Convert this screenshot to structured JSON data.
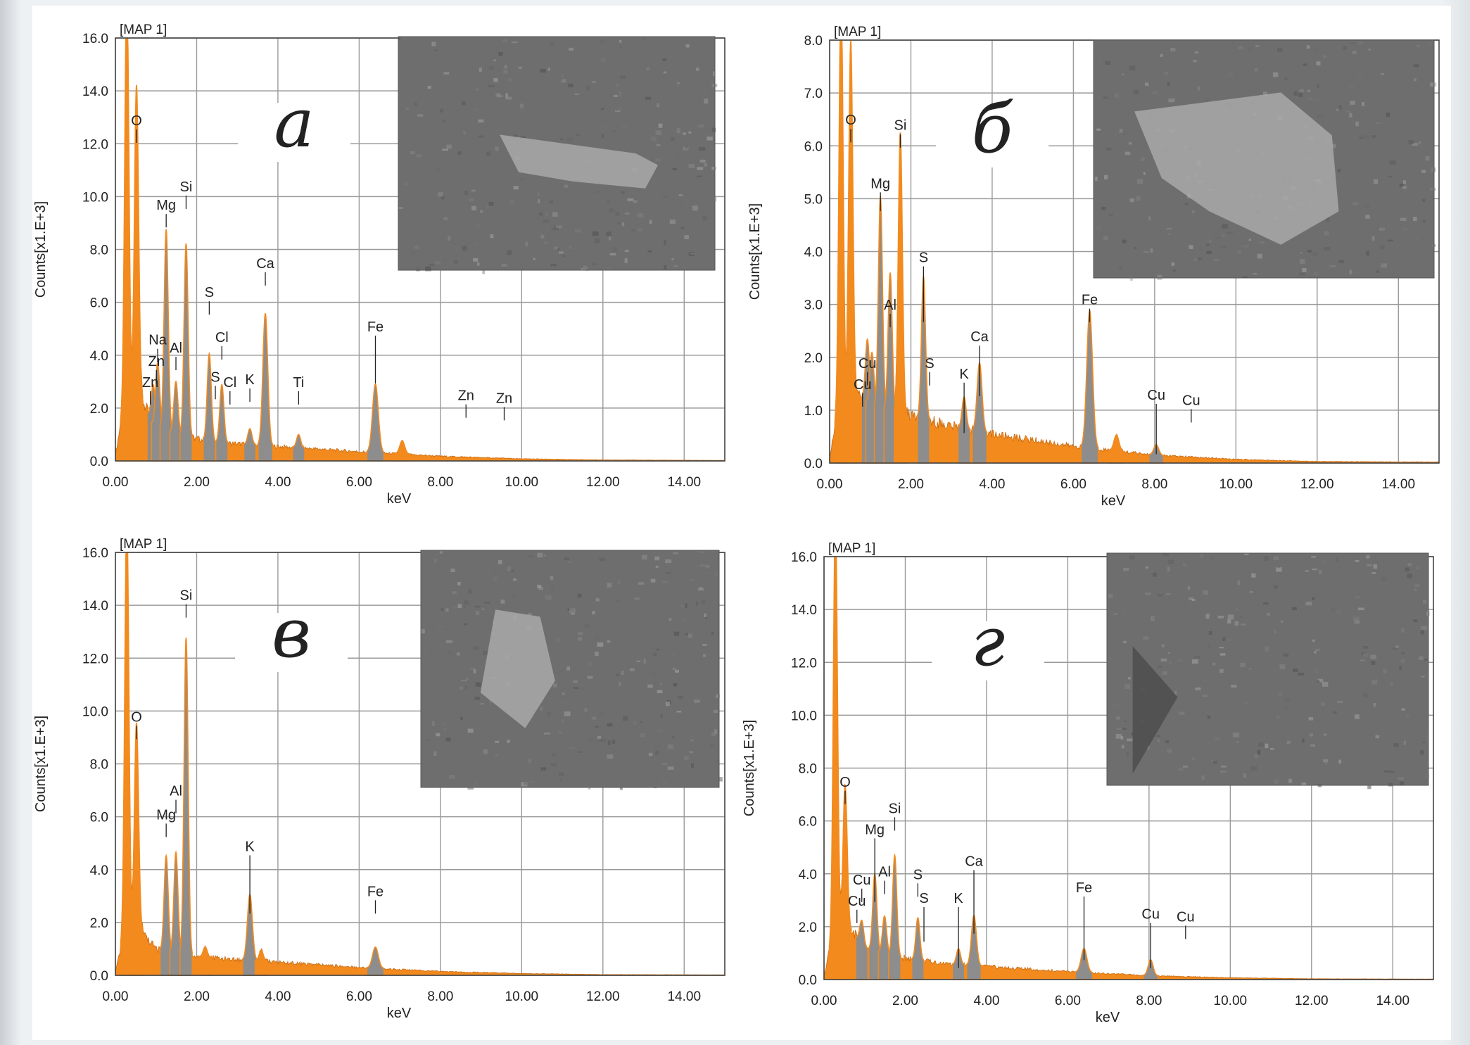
{
  "colors": {
    "spectrum": "#f28a1e",
    "spectrum_dark": "#c96a10",
    "element_peak": "#8d8d8d",
    "grid": "#9a9a9a",
    "micrograph_bg": "#6e6e6e"
  },
  "chart_data": [
    {
      "type": "area",
      "panel_label": "а",
      "map_label": "[MAP 1]",
      "xlabel": "keV",
      "ylabel": "Counts[x1.E+3]",
      "xlim": [
        0,
        15
      ],
      "ylim": [
        0,
        16
      ],
      "xticks": [
        "0.00",
        "2.00",
        "4.00",
        "6.00",
        "8.00",
        "10.00",
        "12.00",
        "14.00"
      ],
      "yticks": [
        "0.0",
        "2.0",
        "4.0",
        "6.0",
        "8.0",
        "10.0",
        "12.0",
        "14.0",
        "16.0"
      ],
      "grid": true,
      "inset": "micrograph-top-right",
      "peaks": [
        {
          "x": 0.28,
          "y": 16.0,
          "w": 0.05,
          "tone": "orange"
        },
        {
          "x": 0.52,
          "y": 11.3,
          "w": 0.05,
          "tone": "orange"
        },
        {
          "x": 0.93,
          "y": 1.5,
          "w": 0.05,
          "tone": "gray"
        },
        {
          "x": 1.04,
          "y": 2.4,
          "w": 0.05,
          "tone": "gray"
        },
        {
          "x": 1.25,
          "y": 7.6,
          "w": 0.05,
          "tone": "gray"
        },
        {
          "x": 1.49,
          "y": 2.0,
          "w": 0.05,
          "tone": "gray"
        },
        {
          "x": 1.74,
          "y": 7.3,
          "w": 0.05,
          "tone": "gray"
        },
        {
          "x": 2.31,
          "y": 3.3,
          "w": 0.05,
          "tone": "gray"
        },
        {
          "x": 2.62,
          "y": 2.2,
          "w": 0.05,
          "tone": "gray"
        },
        {
          "x": 3.31,
          "y": 0.6,
          "w": 0.05,
          "tone": "gray"
        },
        {
          "x": 3.69,
          "y": 5.0,
          "w": 0.06,
          "tone": "gray"
        },
        {
          "x": 4.51,
          "y": 0.5,
          "w": 0.05,
          "tone": "gray"
        },
        {
          "x": 6.4,
          "y": 2.6,
          "w": 0.07,
          "tone": "gray"
        },
        {
          "x": 7.06,
          "y": 0.5,
          "w": 0.06,
          "tone": "orange"
        }
      ],
      "background": [
        [
          0,
          0.2
        ],
        [
          0.15,
          1.6
        ],
        [
          0.5,
          3.0
        ],
        [
          0.9,
          1.4
        ],
        [
          1.5,
          1.0
        ],
        [
          2.5,
          0.7
        ],
        [
          4,
          0.55
        ],
        [
          6,
          0.35
        ],
        [
          8,
          0.18
        ],
        [
          10,
          0.08
        ],
        [
          12,
          0.04
        ],
        [
          15,
          0.02
        ]
      ],
      "annotations": [
        {
          "text": "O",
          "x": 0.52,
          "y": 12.7,
          "line_to": 12.3
        },
        {
          "text": "Si",
          "x": 1.74,
          "y": 10.2,
          "line_to": 9.8
        },
        {
          "text": "Mg",
          "x": 1.25,
          "y": 9.5,
          "line_to": 9.1
        },
        {
          "text": "Ca",
          "x": 3.69,
          "y": 7.3,
          "line_to": 6.9
        },
        {
          "text": "S",
          "x": 2.31,
          "y": 6.2,
          "line_to": 5.8
        },
        {
          "text": "Na",
          "x": 1.04,
          "y": 4.4,
          "line_to": 4.0
        },
        {
          "text": "Al",
          "x": 1.49,
          "y": 4.1,
          "line_to": 3.7
        },
        {
          "text": "Cl",
          "x": 2.62,
          "y": 4.5,
          "line_to": 4.1
        },
        {
          "text": "Zn",
          "x": 1.01,
          "y": 3.6,
          "line_to": 3.2
        },
        {
          "text": "Zn",
          "x": 0.86,
          "y": 2.8,
          "line_to": 2.4
        },
        {
          "text": "S",
          "x": 2.46,
          "y": 3.0,
          "line_to": 2.6
        },
        {
          "text": "Cl",
          "x": 2.82,
          "y": 2.8,
          "line_to": 2.4
        },
        {
          "text": "K",
          "x": 3.31,
          "y": 2.9,
          "line_to": 2.5
        },
        {
          "text": "Ti",
          "x": 4.51,
          "y": 2.8,
          "line_to": 2.4
        },
        {
          "text": "Fe",
          "x": 6.4,
          "y": 4.9,
          "line_to": 3.2
        },
        {
          "text": "Zn",
          "x": 8.63,
          "y": 2.3,
          "line_to": 1.9
        },
        {
          "text": "Zn",
          "x": 9.57,
          "y": 2.2,
          "line_to": 1.8
        }
      ]
    },
    {
      "type": "area",
      "panel_label": "б",
      "map_label": "[MAP 1]",
      "xlabel": "keV",
      "ylabel": "Counts[x1.E+3]",
      "xlim": [
        0,
        15
      ],
      "ylim": [
        0,
        8
      ],
      "xticks": [
        "0.00",
        "2.00",
        "4.00",
        "6.00",
        "8.00",
        "10.00",
        "12.00",
        "14.00"
      ],
      "yticks": [
        "0.0",
        "1.0",
        "2.0",
        "3.0",
        "4.0",
        "5.0",
        "6.0",
        "7.0",
        "8.0"
      ],
      "grid": true,
      "inset": "micrograph-top-right",
      "peaks": [
        {
          "x": 0.28,
          "y": 8.0,
          "w": 0.05,
          "tone": "orange"
        },
        {
          "x": 0.52,
          "y": 6.6,
          "w": 0.05,
          "tone": "orange"
        },
        {
          "x": 0.93,
          "y": 1.2,
          "w": 0.05,
          "tone": "gray"
        },
        {
          "x": 1.04,
          "y": 1.0,
          "w": 0.05,
          "tone": "gray"
        },
        {
          "x": 1.25,
          "y": 4.0,
          "w": 0.05,
          "tone": "gray"
        },
        {
          "x": 1.49,
          "y": 2.6,
          "w": 0.05,
          "tone": "gray"
        },
        {
          "x": 1.74,
          "y": 5.3,
          "w": 0.05,
          "tone": "orange"
        },
        {
          "x": 2.31,
          "y": 2.7,
          "w": 0.05,
          "tone": "gray"
        },
        {
          "x": 3.31,
          "y": 0.6,
          "w": 0.05,
          "tone": "gray"
        },
        {
          "x": 3.69,
          "y": 1.3,
          "w": 0.06,
          "tone": "gray"
        },
        {
          "x": 6.4,
          "y": 2.6,
          "w": 0.07,
          "tone": "gray"
        },
        {
          "x": 7.06,
          "y": 0.3,
          "w": 0.06,
          "tone": "orange"
        },
        {
          "x": 8.04,
          "y": 0.2,
          "w": 0.06,
          "tone": "gray"
        }
      ],
      "background": [
        [
          0,
          0.1
        ],
        [
          0.15,
          0.8
        ],
        [
          0.5,
          1.4
        ],
        [
          1.0,
          1.1
        ],
        [
          2,
          0.9
        ],
        [
          3,
          0.7
        ],
        [
          4,
          0.55
        ],
        [
          6,
          0.32
        ],
        [
          8,
          0.15
        ],
        [
          10,
          0.07
        ],
        [
          12,
          0.03
        ],
        [
          15,
          0.02
        ]
      ],
      "annotations": [
        {
          "text": "O",
          "x": 0.52,
          "y": 6.4,
          "line_to": 6.2
        },
        {
          "text": "Si",
          "x": 1.74,
          "y": 6.3,
          "line_to": 6.1
        },
        {
          "text": "Mg",
          "x": 1.25,
          "y": 5.2,
          "line_to": 4.9
        },
        {
          "text": "S",
          "x": 2.31,
          "y": 3.8,
          "line_to": 2.8
        },
        {
          "text": "Al",
          "x": 1.49,
          "y": 2.9,
          "line_to": 2.7
        },
        {
          "text": "Ca",
          "x": 3.69,
          "y": 2.3,
          "line_to": 1.4
        },
        {
          "text": "Cu",
          "x": 0.93,
          "y": 1.8,
          "line_to": 1.6
        },
        {
          "text": "S",
          "x": 2.46,
          "y": 1.8,
          "line_to": 1.6
        },
        {
          "text": "Cu",
          "x": 0.81,
          "y": 1.4,
          "line_to": 1.2
        },
        {
          "text": "K",
          "x": 3.31,
          "y": 1.6,
          "line_to": 0.7
        },
        {
          "text": "Fe",
          "x": 6.4,
          "y": 3.0,
          "line_to": 2.8
        },
        {
          "text": "Cu",
          "x": 8.04,
          "y": 1.2,
          "line_to": 0.3
        },
        {
          "text": "Cu",
          "x": 8.9,
          "y": 1.1,
          "line_to": 0.9
        }
      ]
    },
    {
      "type": "area",
      "panel_label": "в",
      "map_label": "[MAP 1]",
      "xlabel": "keV",
      "ylabel": "Counts[x1.E+3]",
      "xlim": [
        0,
        15
      ],
      "ylim": [
        0,
        16
      ],
      "xticks": [
        "0.00",
        "2.00",
        "4.00",
        "6.00",
        "8.00",
        "10.00",
        "12.00",
        "14.00"
      ],
      "yticks": [
        "0.0",
        "2.0",
        "4.0",
        "6.0",
        "8.0",
        "10.0",
        "12.0",
        "14.0",
        "16.0"
      ],
      "grid": true,
      "inset": "micrograph-top-right",
      "peaks": [
        {
          "x": 0.28,
          "y": 16.0,
          "w": 0.05,
          "tone": "orange"
        },
        {
          "x": 0.52,
          "y": 7.6,
          "w": 0.05,
          "tone": "orange"
        },
        {
          "x": 1.25,
          "y": 3.6,
          "w": 0.05,
          "tone": "gray"
        },
        {
          "x": 1.49,
          "y": 3.8,
          "w": 0.05,
          "tone": "gray"
        },
        {
          "x": 1.74,
          "y": 12.0,
          "w": 0.05,
          "tone": "gray"
        },
        {
          "x": 2.21,
          "y": 0.4,
          "w": 0.05,
          "tone": "orange"
        },
        {
          "x": 3.31,
          "y": 2.5,
          "w": 0.06,
          "tone": "gray"
        },
        {
          "x": 3.59,
          "y": 0.4,
          "w": 0.05,
          "tone": "orange"
        },
        {
          "x": 6.4,
          "y": 0.8,
          "w": 0.07,
          "tone": "gray"
        }
      ],
      "background": [
        [
          0,
          0.1
        ],
        [
          0.15,
          1.2
        ],
        [
          0.5,
          2.0
        ],
        [
          1.0,
          1.0
        ],
        [
          2,
          0.7
        ],
        [
          3,
          0.6
        ],
        [
          4,
          0.5
        ],
        [
          6,
          0.3
        ],
        [
          8,
          0.15
        ],
        [
          10,
          0.07
        ],
        [
          12,
          0.03
        ],
        [
          15,
          0.02
        ]
      ],
      "annotations": [
        {
          "text": "Si",
          "x": 1.74,
          "y": 14.2,
          "line_to": 13.8
        },
        {
          "text": "O",
          "x": 0.52,
          "y": 9.6,
          "line_to": 9.2
        },
        {
          "text": "Al",
          "x": 1.49,
          "y": 6.8,
          "line_to": 6.4
        },
        {
          "text": "Mg",
          "x": 1.25,
          "y": 5.9,
          "line_to": 5.5
        },
        {
          "text": "K",
          "x": 3.31,
          "y": 4.7,
          "line_to": 2.6
        },
        {
          "text": "Fe",
          "x": 6.4,
          "y": 3.0,
          "line_to": 2.6
        }
      ]
    },
    {
      "type": "area",
      "panel_label": "г",
      "map_label": "[MAP 1]",
      "xlabel": "keV",
      "ylabel": "Counts[x1.E+3]",
      "xlim": [
        0,
        15
      ],
      "ylim": [
        0,
        16
      ],
      "xticks": [
        "0.00",
        "2.00",
        "4.00",
        "6.00",
        "8.00",
        "10.00",
        "12.00",
        "14.00"
      ],
      "yticks": [
        "0.0",
        "2.0",
        "4.0",
        "6.0",
        "8.0",
        "10.0",
        "12.0",
        "14.0",
        "16.0"
      ],
      "grid": true,
      "inset": "micrograph-top-right",
      "peaks": [
        {
          "x": 0.28,
          "y": 16.0,
          "w": 0.05,
          "tone": "orange"
        },
        {
          "x": 0.52,
          "y": 5.2,
          "w": 0.05,
          "tone": "orange"
        },
        {
          "x": 0.93,
          "y": 0.9,
          "w": 0.05,
          "tone": "gray"
        },
        {
          "x": 1.25,
          "y": 2.9,
          "w": 0.05,
          "tone": "gray"
        },
        {
          "x": 1.49,
          "y": 1.4,
          "w": 0.05,
          "tone": "gray"
        },
        {
          "x": 1.74,
          "y": 3.8,
          "w": 0.05,
          "tone": "gray"
        },
        {
          "x": 2.31,
          "y": 1.6,
          "w": 0.05,
          "tone": "gray"
        },
        {
          "x": 3.31,
          "y": 0.6,
          "w": 0.05,
          "tone": "gray"
        },
        {
          "x": 3.69,
          "y": 1.9,
          "w": 0.06,
          "tone": "gray"
        },
        {
          "x": 6.4,
          "y": 0.9,
          "w": 0.07,
          "tone": "gray"
        },
        {
          "x": 8.04,
          "y": 0.6,
          "w": 0.06,
          "tone": "gray"
        }
      ],
      "background": [
        [
          0,
          0.1
        ],
        [
          0.15,
          1.2
        ],
        [
          0.5,
          2.2
        ],
        [
          1.0,
          1.2
        ],
        [
          2,
          0.8
        ],
        [
          3,
          0.6
        ],
        [
          4,
          0.5
        ],
        [
          6,
          0.3
        ],
        [
          8,
          0.15
        ],
        [
          10,
          0.07
        ],
        [
          12,
          0.03
        ],
        [
          15,
          0.02
        ]
      ],
      "annotations": [
        {
          "text": "O",
          "x": 0.52,
          "y": 7.3,
          "line_to": 6.9
        },
        {
          "text": "Si",
          "x": 1.74,
          "y": 6.3,
          "line_to": 5.9
        },
        {
          "text": "Mg",
          "x": 1.25,
          "y": 5.5,
          "line_to": 3.2
        },
        {
          "text": "Ca",
          "x": 3.69,
          "y": 4.3,
          "line_to": 2.0
        },
        {
          "text": "Cu",
          "x": 0.93,
          "y": 3.6,
          "line_to": 3.2
        },
        {
          "text": "Al",
          "x": 1.49,
          "y": 3.9,
          "line_to": 3.5
        },
        {
          "text": "S",
          "x": 2.31,
          "y": 3.8,
          "line_to": 3.4
        },
        {
          "text": "Cu",
          "x": 0.81,
          "y": 2.8,
          "line_to": 2.4
        },
        {
          "text": "S",
          "x": 2.46,
          "y": 2.9,
          "line_to": 1.7
        },
        {
          "text": "K",
          "x": 3.31,
          "y": 2.9,
          "line_to": 0.7
        },
        {
          "text": "Fe",
          "x": 6.4,
          "y": 3.3,
          "line_to": 1.0
        },
        {
          "text": "Cu",
          "x": 8.04,
          "y": 2.3,
          "line_to": 0.7
        },
        {
          "text": "Cu",
          "x": 8.9,
          "y": 2.2,
          "line_to": 1.8
        }
      ]
    }
  ]
}
